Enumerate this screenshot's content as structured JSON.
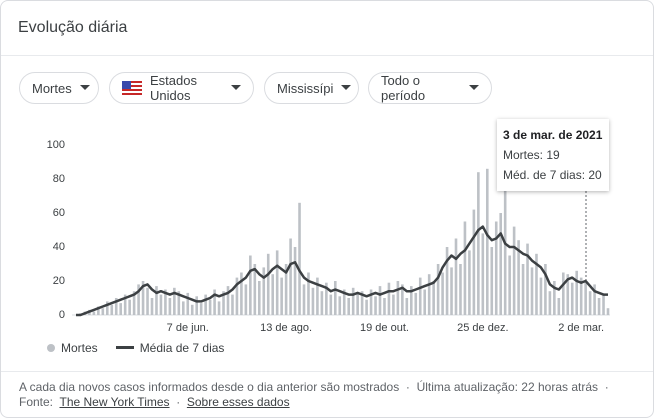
{
  "header": {
    "title": "Evolução diária"
  },
  "filters": [
    "Mortes",
    "Estados Unidos",
    "Mississípi",
    "Todo o período"
  ],
  "chart_data": {
    "type": "bar",
    "categories": [
      null,
      null,
      null,
      null,
      null,
      null,
      null,
      null,
      null,
      null,
      null,
      null,
      null,
      null,
      null,
      null,
      null,
      null,
      null,
      null,
      null,
      null,
      null,
      null,
      null,
      "7 de jun.",
      null,
      null,
      null,
      null,
      null,
      null,
      null,
      null,
      null,
      null,
      null,
      null,
      null,
      null,
      null,
      null,
      null,
      null,
      null,
      null,
      null,
      "13 de ago.",
      null,
      null,
      null,
      null,
      null,
      null,
      null,
      null,
      null,
      null,
      null,
      null,
      null,
      null,
      null,
      null,
      null,
      null,
      null,
      null,
      null,
      "19 de out.",
      null,
      null,
      null,
      null,
      null,
      null,
      null,
      null,
      null,
      null,
      null,
      null,
      null,
      null,
      null,
      null,
      null,
      null,
      null,
      null,
      null,
      "25 de dez.",
      null,
      null,
      null,
      null,
      null,
      null,
      null,
      null,
      null,
      null,
      null,
      null,
      null,
      null,
      null,
      null,
      null,
      null,
      null,
      null,
      null,
      "2 de mar.",
      null,
      null,
      null,
      null,
      null,
      null
    ],
    "series": [
      {
        "name": "Mortes",
        "type": "bar",
        "color": "#bdc1c6",
        "values": [
          0,
          1,
          2,
          3,
          2,
          5,
          4,
          8,
          6,
          10,
          7,
          12,
          9,
          14,
          18,
          20,
          16,
          10,
          17,
          12,
          15,
          10,
          16,
          14,
          8,
          13,
          6,
          11,
          7,
          12,
          9,
          15,
          8,
          14,
          17,
          12,
          22,
          25,
          18,
          35,
          30,
          20,
          28,
          36,
          24,
          38,
          22,
          30,
          45,
          40,
          66,
          18,
          25,
          16,
          22,
          14,
          19,
          12,
          20,
          11,
          15,
          10,
          16,
          12,
          14,
          9,
          15,
          11,
          17,
          10,
          19,
          12,
          20,
          18,
          10,
          17,
          13,
          22,
          15,
          24,
          20,
          30,
          25,
          40,
          28,
          45,
          30,
          55,
          38,
          62,
          84,
          48,
          86,
          40,
          55,
          60,
          78,
          35,
          52,
          44,
          30,
          42,
          28,
          36,
          22,
          30,
          14,
          20,
          10,
          25,
          24,
          19,
          26,
          22,
          19,
          14,
          18,
          10,
          12,
          4
        ]
      },
      {
        "name": "Média de 7 dias",
        "type": "line",
        "color": "#3c4043",
        "values": [
          0,
          0,
          1,
          2,
          3,
          4,
          5,
          6,
          7,
          8,
          9,
          10,
          11,
          12,
          14,
          17,
          18,
          15,
          13,
          14,
          13,
          12,
          13,
          12,
          11,
          10,
          9,
          8,
          8,
          9,
          10,
          12,
          11,
          12,
          13,
          15,
          18,
          20,
          22,
          26,
          27,
          24,
          22,
          24,
          27,
          29,
          27,
          25,
          30,
          31,
          26,
          22,
          20,
          19,
          18,
          17,
          16,
          14,
          15,
          14,
          13,
          12,
          12,
          13,
          12,
          11,
          12,
          13,
          12,
          13,
          14,
          14,
          15,
          16,
          14,
          14,
          15,
          16,
          17,
          18,
          19,
          22,
          28,
          32,
          35,
          33,
          36,
          38,
          42,
          46,
          50,
          52,
          47,
          44,
          45,
          48,
          42,
          40,
          40,
          38,
          36,
          35,
          32,
          30,
          28,
          24,
          18,
          16,
          15,
          18,
          21,
          22,
          20,
          19,
          20,
          17,
          14,
          13,
          12,
          12
        ]
      }
    ],
    "ylim": [
      0,
      100
    ],
    "yticks": [
      0,
      20,
      40,
      60,
      80,
      100
    ],
    "grid": false,
    "tooltip": {
      "title": "3 de mar. de 2021",
      "lines": [
        "Mortes: 19",
        "Méd. de 7 dias: 20"
      ]
    }
  },
  "footer": {
    "note": "A cada dia novos casos informados desde o dia anterior são mostrados",
    "separator": "·",
    "updated": "Última atualização: 22 horas atrás",
    "source_label": "Fonte:",
    "source": "The New York Times",
    "about": "Sobre esses dados"
  }
}
